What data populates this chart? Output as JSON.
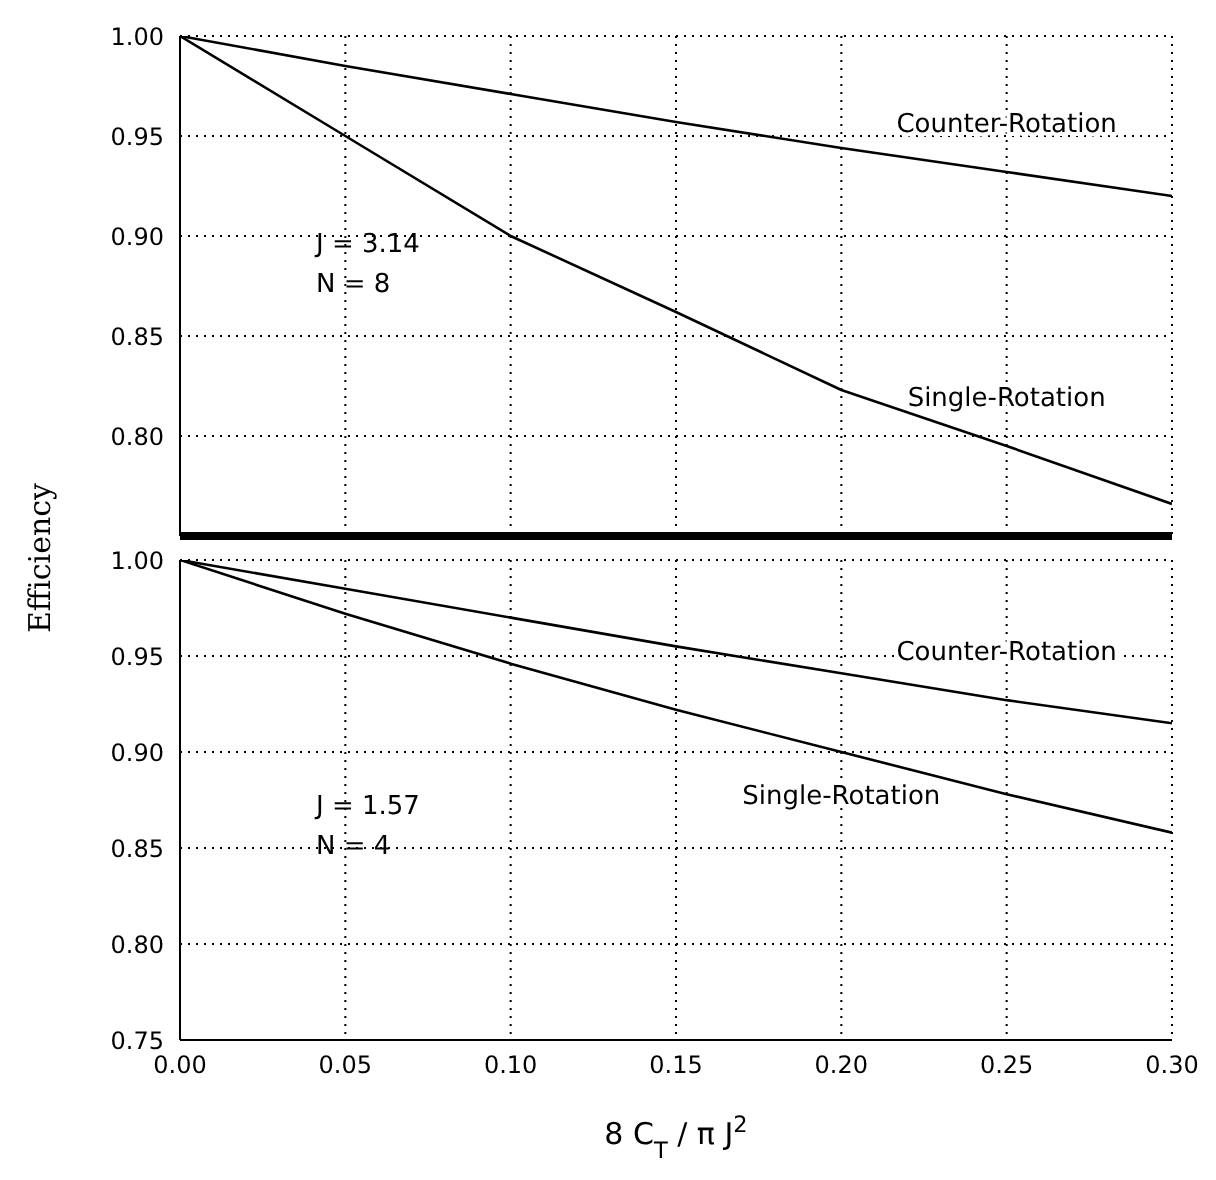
{
  "chart_data": [
    {
      "type": "line",
      "ylabel": "Efficiency",
      "x": [
        0,
        0.05,
        0.1,
        0.15,
        0.2,
        0.25,
        0.3
      ],
      "xlim": [
        0,
        0.3
      ],
      "xticks": [
        0,
        0.05,
        0.1,
        0.15,
        0.2,
        0.25,
        0.3
      ],
      "ylim": [
        0.75,
        1.0
      ],
      "yticks": [
        {
          "value": 0.75,
          "label": null
        },
        {
          "value": 0.8,
          "label": "0.80"
        },
        {
          "value": 0.85,
          "label": "0.85"
        },
        {
          "value": 0.9,
          "label": "0.90"
        },
        {
          "value": 0.95,
          "label": "0.95"
        },
        {
          "value": 1.0,
          "label": "1.00"
        }
      ],
      "tick_labels": "y",
      "grid": true,
      "marker": "none",
      "line_style": "solid",
      "legend": false,
      "series": [
        {
          "name": "Counter-Rotation",
          "color": "#000000",
          "values": [
            1.0,
            0.985,
            0.971,
            0.957,
            0.944,
            0.932,
            0.92
          ]
        },
        {
          "name": "Single-Rotation",
          "color": "#000000",
          "values": [
            1.0,
            0.95,
            0.9,
            0.862,
            0.823,
            0.795,
            0.766
          ]
        }
      ],
      "annotations": [
        "J = 3.14\nN = 8"
      ]
    },
    {
      "type": "line",
      "xlabel": "8 C$_{T}$ / π J$^{2}$",
      "x": [
        0,
        0.05,
        0.1,
        0.15,
        0.2,
        0.25,
        0.3
      ],
      "xlim": [
        0,
        0.3
      ],
      "xticks": [
        {
          "value": 0,
          "label": "0.00"
        },
        {
          "value": 0.05,
          "label": "0.05"
        },
        {
          "value": 0.1,
          "label": "0.10"
        },
        {
          "value": 0.15,
          "label": "0.15"
        },
        {
          "value": 0.2,
          "label": "0.20"
        },
        {
          "value": 0.25,
          "label": "0.25"
        },
        {
          "value": 0.3,
          "label": "0.30"
        }
      ],
      "ylim": [
        0.75,
        1.0
      ],
      "yticks": [
        {
          "value": 0.75,
          "label": "0.75"
        },
        {
          "value": 0.8,
          "label": "0.80"
        },
        {
          "value": 0.85,
          "label": "0.85"
        },
        {
          "value": 0.9,
          "label": "0.90"
        },
        {
          "value": 0.95,
          "label": "0.95"
        },
        {
          "value": 1.0,
          "label": "1.00"
        }
      ],
      "grid": true,
      "marker": "none",
      "line_style": "solid",
      "legend": false,
      "series": [
        {
          "name": "Counter-Rotation",
          "color": "#000000",
          "values": [
            1.0,
            0.985,
            0.97,
            0.955,
            0.941,
            0.927,
            0.915
          ]
        },
        {
          "name": "Single-Rotation",
          "color": "#000000",
          "values": [
            1.0,
            0.972,
            0.946,
            0.922,
            0.9,
            0.878,
            0.858
          ]
        }
      ],
      "annotations": [
        "J = 1.57\nN = 4"
      ]
    }
  ]
}
